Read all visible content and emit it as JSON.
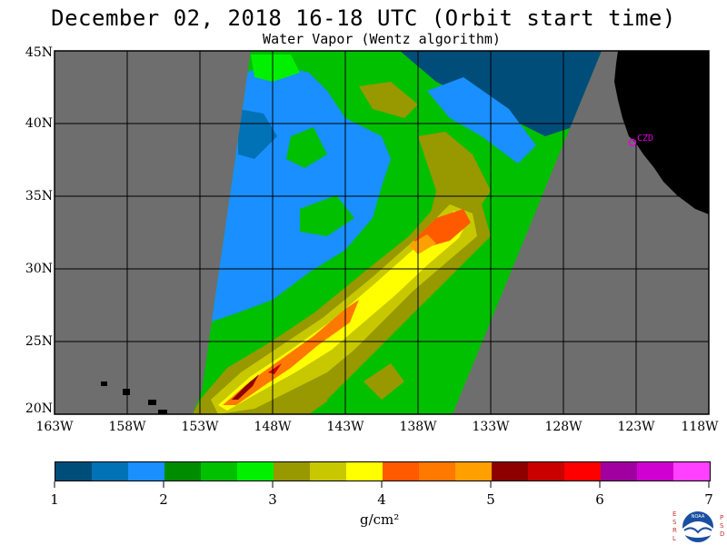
{
  "title": "December 02, 2018  16-18 UTC  (Orbit start time)",
  "subtitle": "Water Vapor (Wentz algorithm)",
  "map": {
    "lat_labels": [
      "45N",
      "40N",
      "35N",
      "30N",
      "25N",
      "20N"
    ],
    "lon_labels": [
      "163W",
      "158W",
      "153W",
      "148W",
      "143W",
      "138W",
      "133W",
      "128W",
      "123W",
      "118W"
    ],
    "station_label": "CZD",
    "colors": {
      "no_data": "#6e6e6e",
      "land": "#000000",
      "station": "#e000e0"
    }
  },
  "colorbar": {
    "colors": [
      "#004d7a",
      "#0072b5",
      "#1a8fff",
      "#008c00",
      "#00c000",
      "#00f000",
      "#989800",
      "#c8c800",
      "#ffff00",
      "#ff5a00",
      "#ff7800",
      "#ffa000",
      "#8c0000",
      "#c80000",
      "#ff0000",
      "#a000a0",
      "#d000d0",
      "#ff40ff"
    ],
    "tick_labels": [
      "1",
      "2",
      "3",
      "4",
      "5",
      "6",
      "7"
    ],
    "units": "g/cm²"
  },
  "logo": {
    "text": "NOAA",
    "left_letters": "ESRL",
    "right_letters": "PSD"
  }
}
